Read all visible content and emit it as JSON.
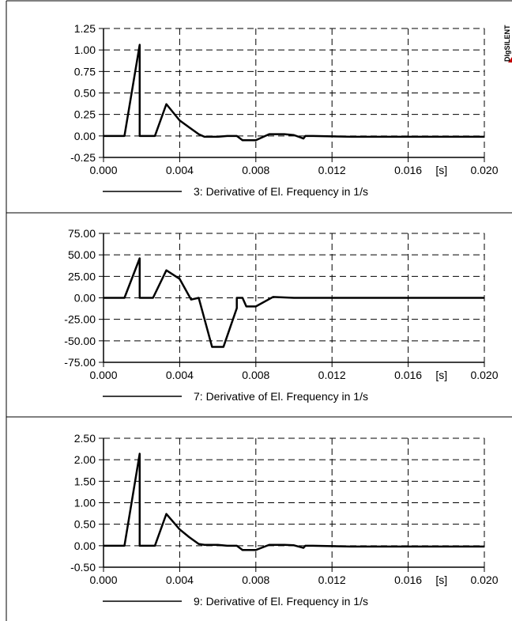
{
  "brand": {
    "logo_text": "DIgSILENT",
    "accent": "#c00000"
  },
  "chart_data": [
    {
      "type": "line",
      "xlabel": "",
      "ylabel": "",
      "x_unit": "[s]",
      "xlim": [
        0.0,
        0.02
      ],
      "ylim": [
        -0.25,
        1.25
      ],
      "x_ticks": [
        "0.000",
        "0.004",
        "0.008",
        "0.012",
        "0.016",
        "0.020"
      ],
      "x_tick_values": [
        0.0,
        0.004,
        0.008,
        0.012,
        0.016,
        0.02
      ],
      "y_ticks": [
        "1.25",
        "1.00",
        "0.75",
        "0.50",
        "0.25",
        "0.00",
        "-0.25"
      ],
      "y_tick_values": [
        1.25,
        1.0,
        0.75,
        0.5,
        0.25,
        0.0,
        -0.25
      ],
      "grid": true,
      "legend_position": "bottom",
      "series": [
        {
          "name": "3: Derivative of El. Frequency in 1/s",
          "color": "#000000",
          "points": [
            [
              0.0,
              0.0
            ],
            [
              0.0011,
              0.0
            ],
            [
              0.0019,
              1.06
            ],
            [
              0.0019,
              0.0
            ],
            [
              0.0027,
              0.0
            ],
            [
              0.0033,
              0.37
            ],
            [
              0.004,
              0.18
            ],
            [
              0.0045,
              0.1
            ],
            [
              0.005,
              0.02
            ],
            [
              0.0053,
              -0.01
            ],
            [
              0.006,
              -0.01
            ],
            [
              0.0065,
              0.0
            ],
            [
              0.007,
              0.0
            ],
            [
              0.0073,
              -0.05
            ],
            [
              0.008,
              -0.05
            ],
            [
              0.0087,
              0.02
            ],
            [
              0.0095,
              0.02
            ],
            [
              0.01,
              0.01
            ],
            [
              0.0105,
              -0.03
            ],
            [
              0.0106,
              0.0
            ],
            [
              0.011,
              0.0
            ],
            [
              0.013,
              -0.01
            ],
            [
              0.02,
              -0.01
            ]
          ]
        }
      ]
    },
    {
      "type": "line",
      "xlabel": "",
      "ylabel": "",
      "x_unit": "[s]",
      "xlim": [
        0.0,
        0.02
      ],
      "ylim": [
        -75.0,
        75.0
      ],
      "x_ticks": [
        "0.000",
        "0.004",
        "0.008",
        "0.012",
        "0.016",
        "0.020"
      ],
      "x_tick_values": [
        0.0,
        0.004,
        0.008,
        0.012,
        0.016,
        0.02
      ],
      "y_ticks": [
        "75.00",
        "50.00",
        "25.00",
        "0.00",
        "-25.00",
        "-50.00",
        "-75.00"
      ],
      "y_tick_values": [
        75.0,
        50.0,
        25.0,
        0.0,
        -25.0,
        -50.0,
        -75.0
      ],
      "grid": true,
      "legend_position": "bottom",
      "series": [
        {
          "name": "7: Derivative of El. Frequency in 1/s",
          "color": "#000000",
          "points": [
            [
              0.0,
              0.0
            ],
            [
              0.0011,
              0.0
            ],
            [
              0.0019,
              46.0
            ],
            [
              0.0019,
              0.0
            ],
            [
              0.0026,
              0.0
            ],
            [
              0.0033,
              32.0
            ],
            [
              0.004,
              22.0
            ],
            [
              0.0046,
              -2.0
            ],
            [
              0.005,
              0.0
            ],
            [
              0.0057,
              -57.0
            ],
            [
              0.0063,
              -57.0
            ],
            [
              0.007,
              -12.0
            ],
            [
              0.007,
              0.0
            ],
            [
              0.0073,
              0.0
            ],
            [
              0.0075,
              -10.0
            ],
            [
              0.008,
              -10.0
            ],
            [
              0.0089,
              1.0
            ],
            [
              0.01,
              0.0
            ],
            [
              0.02,
              0.0
            ]
          ]
        }
      ]
    },
    {
      "type": "line",
      "xlabel": "",
      "ylabel": "",
      "x_unit": "[s]",
      "xlim": [
        0.0,
        0.02
      ],
      "ylim": [
        -0.5,
        2.5
      ],
      "x_ticks": [
        "0.000",
        "0.004",
        "0.008",
        "0.012",
        "0.016",
        "0.020"
      ],
      "x_tick_values": [
        0.0,
        0.004,
        0.008,
        0.012,
        0.016,
        0.02
      ],
      "y_ticks": [
        "2.50",
        "2.00",
        "1.50",
        "1.00",
        "0.50",
        "0.00",
        "-0.50"
      ],
      "y_tick_values": [
        2.5,
        2.0,
        1.5,
        1.0,
        0.5,
        0.0,
        -0.5
      ],
      "grid": true,
      "legend_position": "bottom",
      "series": [
        {
          "name": "9: Derivative of El. Frequency in 1/s",
          "color": "#000000",
          "points": [
            [
              0.0,
              0.0
            ],
            [
              0.0011,
              0.0
            ],
            [
              0.0019,
              2.14
            ],
            [
              0.0019,
              0.0
            ],
            [
              0.0027,
              0.0
            ],
            [
              0.0033,
              0.74
            ],
            [
              0.004,
              0.38
            ],
            [
              0.0045,
              0.2
            ],
            [
              0.005,
              0.04
            ],
            [
              0.0053,
              0.02
            ],
            [
              0.006,
              0.02
            ],
            [
              0.0065,
              0.0
            ],
            [
              0.007,
              0.0
            ],
            [
              0.0073,
              -0.1
            ],
            [
              0.008,
              -0.1
            ],
            [
              0.0087,
              0.02
            ],
            [
              0.0095,
              0.02
            ],
            [
              0.01,
              0.01
            ],
            [
              0.0105,
              -0.05
            ],
            [
              0.0106,
              0.0
            ],
            [
              0.011,
              0.0
            ],
            [
              0.013,
              -0.02
            ],
            [
              0.02,
              -0.02
            ]
          ]
        }
      ]
    }
  ]
}
